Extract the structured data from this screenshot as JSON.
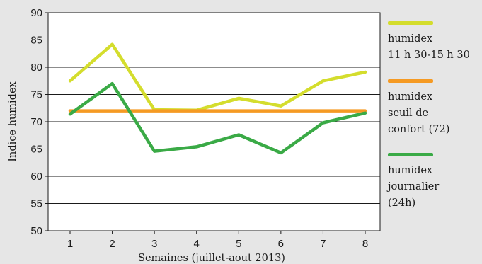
{
  "chart_data": {
    "type": "line",
    "xlabel": "Semaines (juillet-aout 2013)",
    "ylabel": "Indice humidex",
    "categories": [
      "1",
      "2",
      "3",
      "4",
      "5",
      "6",
      "7",
      "8"
    ],
    "ylim": [
      50,
      90
    ],
    "yticks": [
      "50",
      "55",
      "60",
      "65",
      "70",
      "75",
      "80",
      "85",
      "90"
    ],
    "grid": "horizontal",
    "legend_position": "right",
    "series": [
      {
        "name": "humidex\n11 h 30-15 h 30",
        "color": "#d4dd2d",
        "values": [
          77.5,
          84.2,
          72.2,
          72.1,
          74.3,
          72.9,
          77.5,
          79.1
        ]
      },
      {
        "name": "humidex\nseuil de\nconfort (72)",
        "color": "#f59a23",
        "values": [
          72,
          72,
          72,
          72,
          72,
          72,
          72,
          72
        ]
      },
      {
        "name": "humidex\njournalier\n(24h)",
        "color": "#3aaa46",
        "values": [
          71.4,
          77.0,
          64.6,
          65.4,
          67.6,
          64.3,
          69.8,
          71.6
        ]
      }
    ]
  }
}
